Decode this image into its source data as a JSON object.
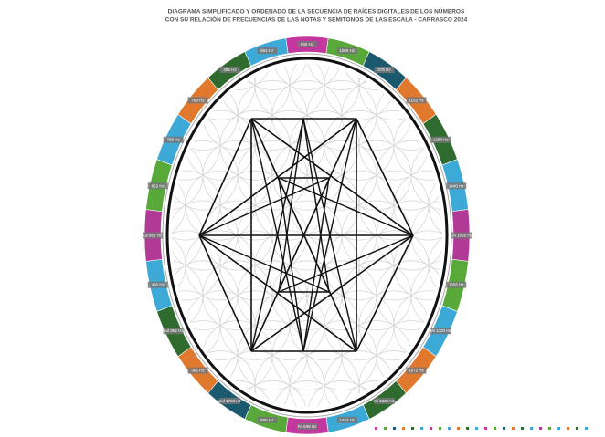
{
  "title": [
    "DIAGRAMA SIMPLIFICADO Y ORDENADO DE LA SECUENCIA DE RAÍCES DIGITALES DE LOS NÚMEROS",
    "CON SU RELACIÓN DE FRECUENCIAS DE LAS NOTAS Y SEMITONOS DE LAS ESCALA - CARRASCO 2024"
  ],
  "segments": [
    {
      "label": "960 Hz",
      "color": "#c2389e"
    },
    {
      "label": "1080 Hz",
      "color": "#58a83a"
    },
    {
      "label": "576 Hz",
      "color": "#1b5a6e"
    },
    {
      "label": "1152 Hz",
      "color": "#e0782e"
    },
    {
      "label": "1280 Hz",
      "color": "#2f6b2f"
    },
    {
      "label": "1440 Hz",
      "color": "#3da9d6"
    },
    {
      "label": "Do 1056 Hz",
      "color": "#b03a95"
    },
    {
      "label": "1056 Hz",
      "color": "#58a83a"
    },
    {
      "label": "Mi 1320 Hz",
      "color": "#3da9d6"
    },
    {
      "label": "1672 Hz",
      "color": "#e0782e"
    },
    {
      "label": "Mi 1320 Hz",
      "color": "#2f6b2f"
    },
    {
      "label": "1452 Hz",
      "color": "#3da9d6"
    },
    {
      "label": "Fa 639 Hz",
      "color": "#c2389e"
    },
    {
      "label": "696 Hz",
      "color": "#58a83a"
    },
    {
      "label": "Sol 1760 Hz",
      "color": "#1b5a6e"
    },
    {
      "label": "396 Hz",
      "color": "#e0782e"
    },
    {
      "label": "Sol 852 Hz",
      "color": "#2f6b2f"
    },
    {
      "label": "480 Hz",
      "color": "#3da9d6"
    },
    {
      "label": "La 852 Hz",
      "color": "#b03a95"
    },
    {
      "label": "852 Hz",
      "color": "#58a83a"
    },
    {
      "label": "768 Hz",
      "color": "#3da9d6"
    },
    {
      "label": "768 Hz",
      "color": "#e0782e"
    },
    {
      "label": "384 Hz",
      "color": "#2f6b2f"
    },
    {
      "label": "864 Hz",
      "color": "#3da9d6"
    }
  ]
}
